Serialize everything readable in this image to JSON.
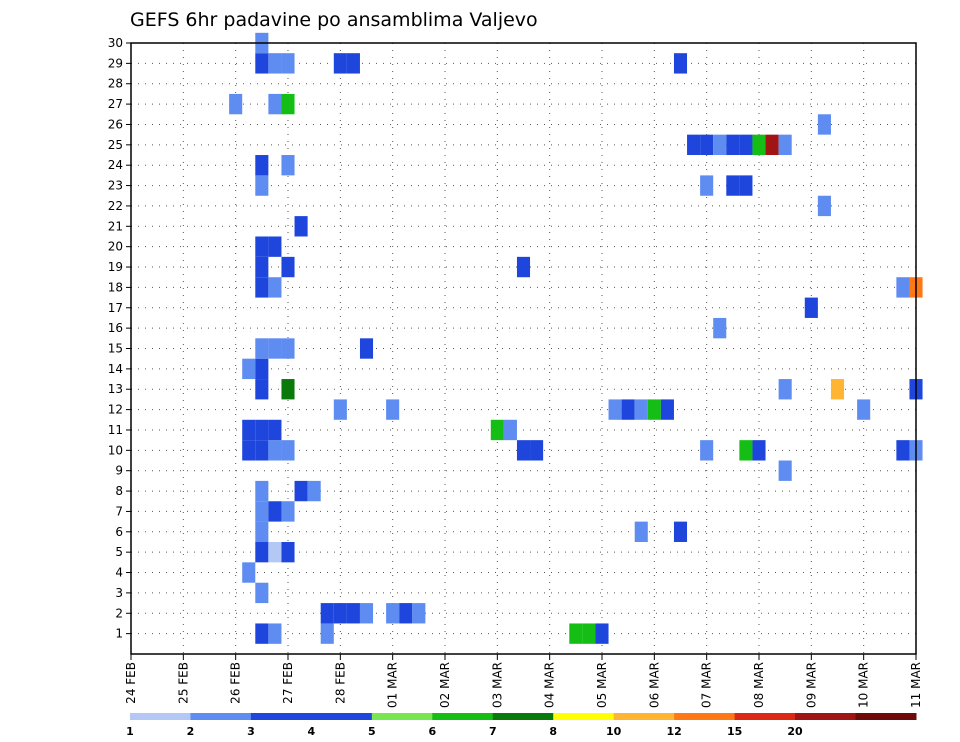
{
  "chart_data": {
    "type": "heatmap",
    "title": "GEFS 6hr padavine po ansamblima Valjevo",
    "xlabel": "",
    "ylabel": "",
    "x_tick_labels": [
      "24 FEB",
      "25 FEB",
      "26 FEB",
      "27 FEB",
      "28 FEB",
      "01 MAR",
      "02 MAR",
      "03 MAR",
      "04 MAR",
      "05 MAR",
      "06 MAR",
      "07 MAR",
      "08 MAR",
      "09 MAR",
      "10 MAR",
      "11 MAR"
    ],
    "x_range_steps": [
      0,
      60
    ],
    "steps_per_day": 4,
    "y_tick_labels": [
      "1",
      "2",
      "3",
      "4",
      "5",
      "6",
      "7",
      "8",
      "9",
      "10",
      "11",
      "12",
      "13",
      "14",
      "15",
      "16",
      "17",
      "18",
      "19",
      "20",
      "21",
      "22",
      "23",
      "24",
      "25",
      "26",
      "27",
      "28",
      "29",
      "30"
    ],
    "y_range": [
      0,
      30
    ],
    "grid": true,
    "colorbar": {
      "labels": [
        "1",
        "2",
        "3",
        "4",
        "5",
        "6",
        "7",
        "8",
        "10",
        "12",
        "15",
        "20"
      ],
      "colors": [
        "#b4c8f5",
        "#5f8cf0",
        "#1e46dc",
        "#1e46dc",
        "#78e650",
        "#14be14",
        "#0a780a",
        "#ffff00",
        "#ffb432",
        "#ff7814",
        "#dc2814",
        "#a01414",
        "#6e0a0a"
      ]
    },
    "cells": [
      {
        "m": 1,
        "s": 10,
        "c": 2
      },
      {
        "m": 1,
        "s": 11,
        "c": 1
      },
      {
        "m": 1,
        "s": 15,
        "c": 1
      },
      {
        "m": 1,
        "s": 34,
        "c": 5
      },
      {
        "m": 1,
        "s": 35,
        "c": 5
      },
      {
        "m": 1,
        "s": 36,
        "c": 3
      },
      {
        "m": 2,
        "s": 15,
        "c": 2
      },
      {
        "m": 2,
        "s": 16,
        "c": 3
      },
      {
        "m": 2,
        "s": 17,
        "c": 3
      },
      {
        "m": 2,
        "s": 18,
        "c": 1
      },
      {
        "m": 2,
        "s": 20,
        "c": 1
      },
      {
        "m": 2,
        "s": 21,
        "c": 2
      },
      {
        "m": 2,
        "s": 22,
        "c": 1
      },
      {
        "m": 3,
        "s": 10,
        "c": 1
      },
      {
        "m": 4,
        "s": 9,
        "c": 1
      },
      {
        "m": 5,
        "s": 10,
        "c": 2
      },
      {
        "m": 5,
        "s": 11,
        "c": 0
      },
      {
        "m": 5,
        "s": 12,
        "c": 3
      },
      {
        "m": 6,
        "s": 10,
        "c": 1
      },
      {
        "m": 6,
        "s": 39,
        "c": 1
      },
      {
        "m": 6,
        "s": 42,
        "c": 2
      },
      {
        "m": 7,
        "s": 10,
        "c": 1
      },
      {
        "m": 7,
        "s": 11,
        "c": 2
      },
      {
        "m": 7,
        "s": 12,
        "c": 1
      },
      {
        "m": 8,
        "s": 10,
        "c": 1
      },
      {
        "m": 8,
        "s": 13,
        "c": 3
      },
      {
        "m": 8,
        "s": 14,
        "c": 1
      },
      {
        "m": 9,
        "s": 50,
        "c": 1
      },
      {
        "m": 10,
        "s": 9,
        "c": 2
      },
      {
        "m": 10,
        "s": 10,
        "c": 2
      },
      {
        "m": 10,
        "s": 11,
        "c": 1
      },
      {
        "m": 10,
        "s": 12,
        "c": 1
      },
      {
        "m": 10,
        "s": 30,
        "c": 2
      },
      {
        "m": 10,
        "s": 31,
        "c": 2
      },
      {
        "m": 10,
        "s": 44,
        "c": 1
      },
      {
        "m": 10,
        "s": 47,
        "c": 5
      },
      {
        "m": 10,
        "s": 48,
        "c": 2
      },
      {
        "m": 10,
        "s": 59,
        "c": 2
      },
      {
        "m": 10,
        "s": 60,
        "c": 1
      },
      {
        "m": 11,
        "s": 9,
        "c": 2
      },
      {
        "m": 11,
        "s": 10,
        "c": 3
      },
      {
        "m": 11,
        "s": 11,
        "c": 3
      },
      {
        "m": 11,
        "s": 28,
        "c": 5
      },
      {
        "m": 11,
        "s": 29,
        "c": 1
      },
      {
        "m": 12,
        "s": 16,
        "c": 1
      },
      {
        "m": 12,
        "s": 20,
        "c": 1
      },
      {
        "m": 12,
        "s": 37,
        "c": 1
      },
      {
        "m": 12,
        "s": 38,
        "c": 2
      },
      {
        "m": 12,
        "s": 39,
        "c": 1
      },
      {
        "m": 12,
        "s": 40,
        "c": 5
      },
      {
        "m": 12,
        "s": 41,
        "c": 3
      },
      {
        "m": 12,
        "s": 56,
        "c": 1
      },
      {
        "m": 13,
        "s": 10,
        "c": 3
      },
      {
        "m": 13,
        "s": 12,
        "c": 6
      },
      {
        "m": 13,
        "s": 50,
        "c": 1
      },
      {
        "m": 13,
        "s": 54,
        "c": 8
      },
      {
        "m": 13,
        "s": 60,
        "c": 3
      },
      {
        "m": 14,
        "s": 9,
        "c": 1
      },
      {
        "m": 14,
        "s": 10,
        "c": 2
      },
      {
        "m": 15,
        "s": 10,
        "c": 1
      },
      {
        "m": 15,
        "s": 11,
        "c": 1
      },
      {
        "m": 15,
        "s": 12,
        "c": 1
      },
      {
        "m": 15,
        "s": 18,
        "c": 2
      },
      {
        "m": 16,
        "s": 45,
        "c": 1
      },
      {
        "m": 17,
        "s": 52,
        "c": 2
      },
      {
        "m": 18,
        "s": 10,
        "c": 2
      },
      {
        "m": 18,
        "s": 11,
        "c": 1
      },
      {
        "m": 18,
        "s": 59,
        "c": 1
      },
      {
        "m": 18,
        "s": 60,
        "c": 9
      },
      {
        "m": 19,
        "s": 10,
        "c": 3
      },
      {
        "m": 19,
        "s": 12,
        "c": 2
      },
      {
        "m": 19,
        "s": 30,
        "c": 2
      },
      {
        "m": 20,
        "s": 10,
        "c": 3
      },
      {
        "m": 20,
        "s": 11,
        "c": 2
      },
      {
        "m": 21,
        "s": 13,
        "c": 2
      },
      {
        "m": 22,
        "s": 53,
        "c": 1
      },
      {
        "m": 23,
        "s": 10,
        "c": 1
      },
      {
        "m": 23,
        "s": 44,
        "c": 1
      },
      {
        "m": 23,
        "s": 46,
        "c": 3
      },
      {
        "m": 23,
        "s": 47,
        "c": 2
      },
      {
        "m": 24,
        "s": 10,
        "c": 2
      },
      {
        "m": 24,
        "s": 12,
        "c": 1
      },
      {
        "m": 25,
        "s": 43,
        "c": 2
      },
      {
        "m": 25,
        "s": 44,
        "c": 3
      },
      {
        "m": 25,
        "s": 45,
        "c": 1
      },
      {
        "m": 25,
        "s": 46,
        "c": 3
      },
      {
        "m": 25,
        "s": 47,
        "c": 3
      },
      {
        "m": 25,
        "s": 48,
        "c": 5
      },
      {
        "m": 25,
        "s": 49,
        "c": 11
      },
      {
        "m": 25,
        "s": 50,
        "c": 1
      },
      {
        "m": 26,
        "s": 53,
        "c": 1
      },
      {
        "m": 27,
        "s": 8,
        "c": 1
      },
      {
        "m": 27,
        "s": 11,
        "c": 1
      },
      {
        "m": 27,
        "s": 12,
        "c": 5
      },
      {
        "m": 29,
        "s": 10,
        "c": 3
      },
      {
        "m": 29,
        "s": 11,
        "c": 1
      },
      {
        "m": 29,
        "s": 12,
        "c": 1
      },
      {
        "m": 29,
        "s": 16,
        "c": 2
      },
      {
        "m": 29,
        "s": 17,
        "c": 2
      },
      {
        "m": 29,
        "s": 42,
        "c": 3
      },
      {
        "m": 30,
        "s": 10,
        "c": 1
      }
    ]
  }
}
